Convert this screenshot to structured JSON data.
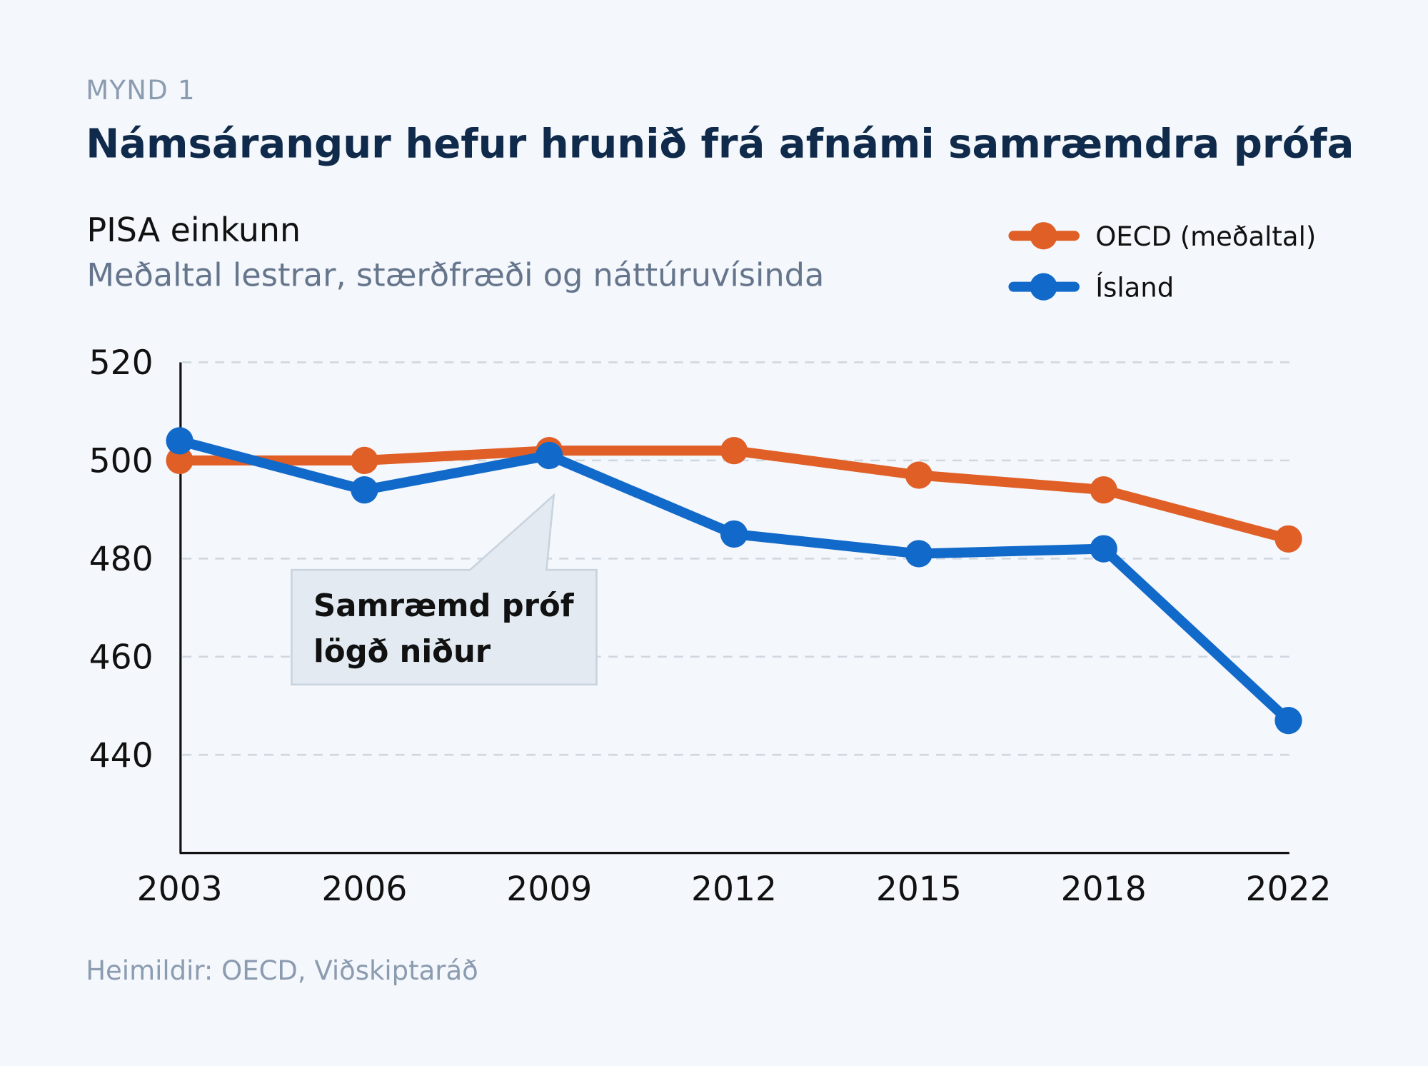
{
  "kicker": "MYND 1",
  "title": "Námsárangur hefur hrunið frá afnámi samræmdra prófa",
  "source": "Heimildir: OECD, Viðskiptaráð",
  "chart_data": {
    "type": "line",
    "ylabel": "PISA einkunn",
    "subtitle": "Meðaltal lestrar, stærðfræði og náttúruvísinda",
    "categories": [
      "2003",
      "2006",
      "2009",
      "2012",
      "2015",
      "2018",
      "2022"
    ],
    "ylim": [
      420,
      520
    ],
    "yticks": [
      "520",
      "500",
      "480",
      "460",
      "440"
    ],
    "grid": true,
    "legend_position": "top-right",
    "series": [
      {
        "name": "OECD (meðaltal)",
        "color": "#e05f26",
        "values": [
          500,
          500,
          502,
          502,
          497,
          494,
          484
        ]
      },
      {
        "name": "Ísland",
        "color": "#1169c9",
        "values": [
          504,
          494,
          501,
          485,
          481,
          482,
          447
        ]
      }
    ],
    "annotation": {
      "line1": "Samræmd próf",
      "line2": "lögð niður",
      "category": "2009"
    }
  }
}
